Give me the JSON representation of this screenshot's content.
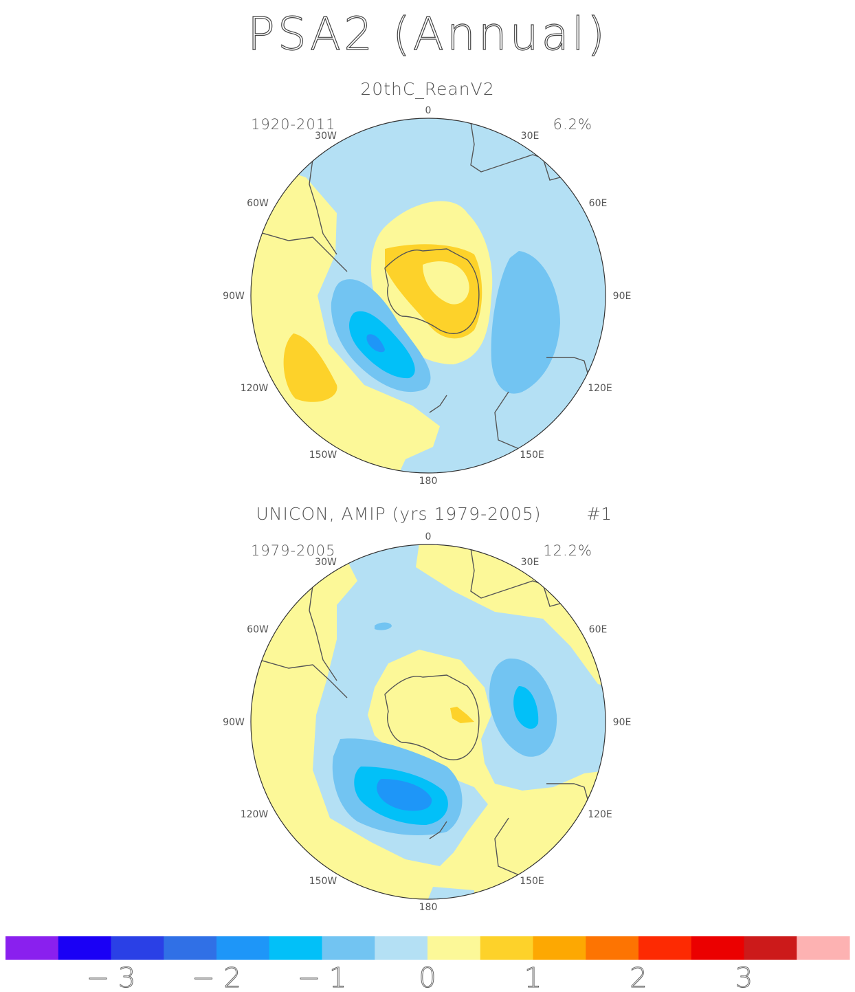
{
  "title": "PSA2 (Annual)",
  "maps": [
    {
      "name": "20thC_ReanV2",
      "number": "",
      "years": "1920-2011",
      "percent": "6.2%",
      "lon_labels": {
        "top": "0",
        "top_left": "30W",
        "top_right": "30E",
        "upper_left": "60W",
        "upper_right": "60E",
        "left": "90W",
        "right": "90E",
        "lower_left": "120W",
        "lower_right": "120E",
        "bottom_left": "150W",
        "bottom_right": "150E",
        "bottom": "180"
      }
    },
    {
      "name": "UNICON, AMIP (yrs 1979-2005)",
      "number": "#1",
      "years": "1979-2005",
      "percent": "12.2%",
      "lon_labels": {
        "top": "0",
        "top_left": "30W",
        "top_right": "30E",
        "upper_left": "60W",
        "upper_right": "60E",
        "left": "90W",
        "right": "90E",
        "lower_left": "120W",
        "lower_right": "120E",
        "bottom_left": "150W",
        "bottom_right": "150E",
        "bottom": "180"
      }
    }
  ],
  "colorbar": {
    "colors": [
      "#8a20ee",
      "#1a00f5",
      "#2a40e6",
      "#3070e6",
      "#1e96f8",
      "#02c0f8",
      "#72c4f2",
      "#b4e0f4",
      "#fcf898",
      "#fdd22a",
      "#fda802",
      "#fd7402",
      "#fd2a02",
      "#eb0000",
      "#cc1a1a",
      "#fdb2b2"
    ],
    "tick_labels": [
      "-3",
      "-2",
      "-1",
      "0",
      "1",
      "2",
      "3"
    ]
  }
}
